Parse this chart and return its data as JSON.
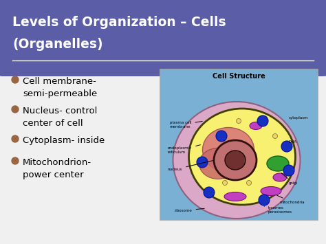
{
  "title_line1": "Levels of Organization – Cells",
  "title_line2": "(Organelles)",
  "title_bg_color": "#5b5ea6",
  "slide_bg_color": "#ffffff",
  "card_border_color": "#6bbaba",
  "bullet_color": "#996644",
  "bullet_points": [
    [
      "Cell membrane-",
      "semi-permeable"
    ],
    [
      "Nucleus- control",
      "center of cell"
    ],
    [
      "Cytoplasm- inside"
    ],
    [
      "Mitochondrion-",
      "power center"
    ]
  ],
  "title_text_color": "#ffffff",
  "body_text_color": "#000000",
  "cell_image_title": "Cell Structure",
  "cell_bg_color": "#7ab0d4",
  "cell_outer_color": "#dba8c8",
  "cell_inner_color": "#f8f070",
  "nucleus_color": "#c06060",
  "nucleolus_color": "#703030",
  "blue_dot_color": "#1830c0",
  "green_patch_color": "#30a030"
}
